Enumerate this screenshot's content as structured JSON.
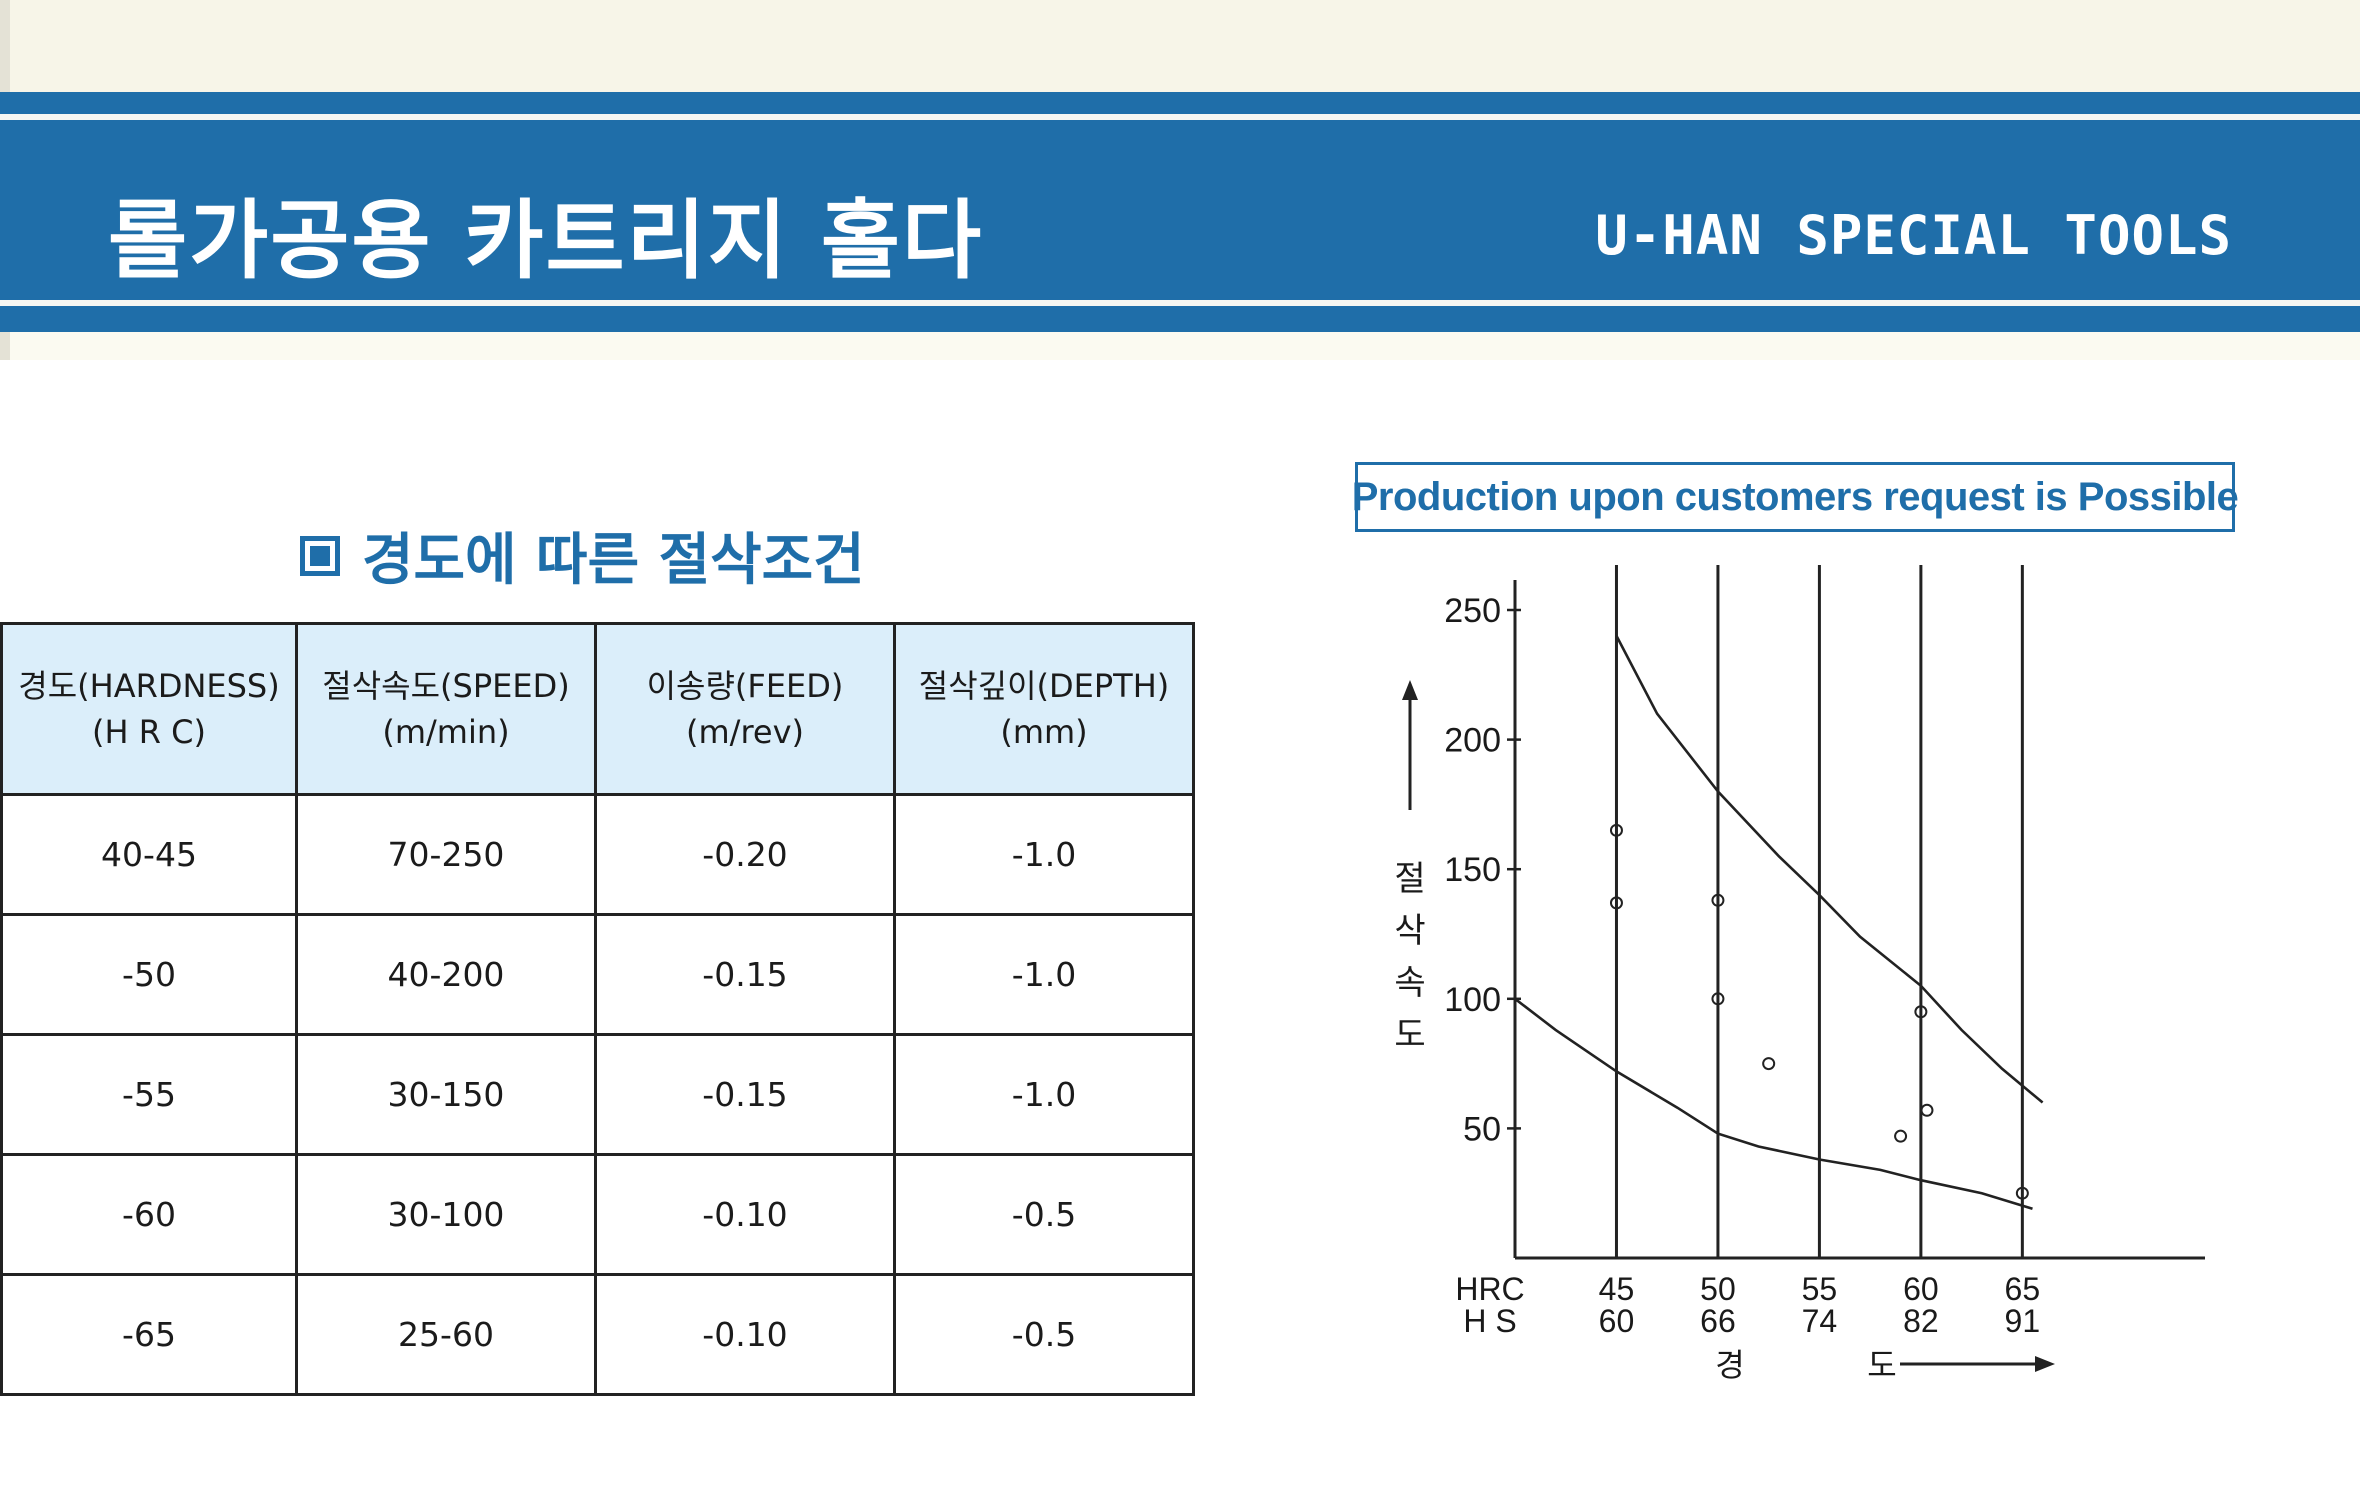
{
  "header": {
    "title": "롤가공용 카트리지 홀다",
    "brand": "U-HAN SPECIAL TOOLS"
  },
  "section": {
    "title": "경도에 따른 절삭조건"
  },
  "table": {
    "headers": [
      {
        "line1": "경도(HARDNESS)",
        "line2": "(H R C)"
      },
      {
        "line1": "절삭속도(SPEED)",
        "line2": "(m/min)"
      },
      {
        "line1": "이송량(FEED)",
        "line2": "(m/rev)"
      },
      {
        "line1": "절삭깊이(DEPTH)",
        "line2": "(mm)"
      }
    ],
    "rows": [
      [
        "40-45",
        "70-250",
        "-0.20",
        "-1.0"
      ],
      [
        "-50",
        "40-200",
        "-0.15",
        "-1.0"
      ],
      [
        "-55",
        "30-150",
        "-0.15",
        "-1.0"
      ],
      [
        "-60",
        "30-100",
        "-0.10",
        "-0.5"
      ],
      [
        "-65",
        "25-60",
        "-0.10",
        "-0.5"
      ]
    ]
  },
  "request_note": "Production upon customers request is Possible",
  "chart_data": {
    "type": "line",
    "ylabel": "절삭속도",
    "xlabel": "경도",
    "x_row_labels": [
      "HRC",
      "H S"
    ],
    "x_hrc": [
      45,
      50,
      55,
      60,
      65
    ],
    "x_hs": [
      60,
      66,
      74,
      82,
      91
    ],
    "x_ticks": [
      {
        "hrc": "45",
        "hs": "60"
      },
      {
        "hrc": "50",
        "hs": "66"
      },
      {
        "hrc": "55",
        "hs": "74"
      },
      {
        "hrc": "60",
        "hs": "82"
      },
      {
        "hrc": "65",
        "hs": "91"
      }
    ],
    "y_ticks": [
      "250",
      "200",
      "150",
      "100",
      "50"
    ],
    "xlim": [
      40,
      74
    ],
    "ylim": [
      0,
      250
    ],
    "grid": "vertical lines at HRC 40, 45, 50, 55, 60, 65",
    "series": [
      {
        "x": [
          45,
          47,
          50,
          53,
          55,
          57,
          60,
          62,
          64,
          66
        ],
        "y": [
          240,
          210,
          180,
          155,
          140,
          124,
          105,
          88,
          73,
          60
        ]
      },
      {
        "x": [
          40,
          42,
          45,
          48,
          50,
          52,
          55,
          58,
          60,
          63,
          65.5
        ],
        "y": [
          100,
          88,
          72,
          58,
          48,
          43,
          38,
          34,
          30,
          25,
          19
        ]
      }
    ],
    "points": [
      {
        "x": 45,
        "y": 165
      },
      {
        "x": 45,
        "y": 137
      },
      {
        "x": 50,
        "y": 138
      },
      {
        "x": 50,
        "y": 100
      },
      {
        "x": 52.5,
        "y": 75
      },
      {
        "x": 60,
        "y": 95
      },
      {
        "x": 60.3,
        "y": 57
      },
      {
        "x": 59,
        "y": 47
      },
      {
        "x": 65,
        "y": 25
      }
    ]
  }
}
